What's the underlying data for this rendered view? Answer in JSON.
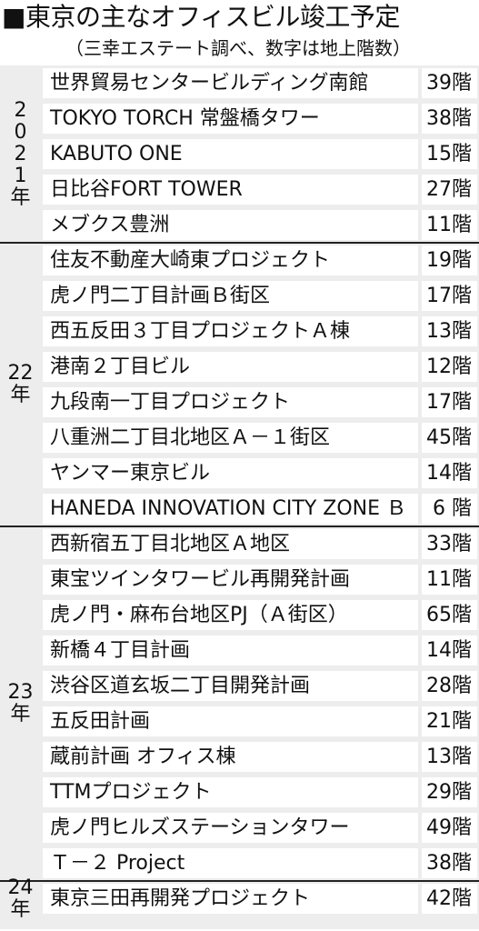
{
  "header": {
    "title": "■東京の主なオフィスビル竣工予定",
    "subtitle": "（三幸エステート調べ、数字は地上階数）"
  },
  "groups": [
    {
      "year": "2\n0\n2\n1\n年",
      "rows": [
        {
          "name": "世界貿易センタービルディング南館",
          "floors": "39階"
        },
        {
          "name": "TOKYO TORCH 常盤橋タワー",
          "floors": "38階"
        },
        {
          "name": "KABUTO ONE",
          "floors": "15階"
        },
        {
          "name": "日比谷FORT TOWER",
          "floors": "27階"
        },
        {
          "name": "メブクス豊洲",
          "floors": "11階"
        }
      ]
    },
    {
      "year": "22\n年",
      "rows": [
        {
          "name": "住友不動産大崎東プロジェクト",
          "floors": "19階"
        },
        {
          "name": "虎ノ門二丁目計画Ｂ街区",
          "floors": "17階"
        },
        {
          "name": "西五反田３丁目プロジェクトＡ棟",
          "floors": "13階"
        },
        {
          "name": "港南２丁目ビル",
          "floors": "12階"
        },
        {
          "name": "九段南一丁目プロジェクト",
          "floors": "17階"
        },
        {
          "name": "八重洲二丁目北地区Ａ－１街区",
          "floors": "45階"
        },
        {
          "name": "ヤンマー東京ビル",
          "floors": "14階"
        },
        {
          "name": "HANEDA INNOVATION CITY ZONE Ｂ",
          "floors": "6 階"
        }
      ]
    },
    {
      "year": "23\n年",
      "rows": [
        {
          "name": "西新宿五丁目北地区Ａ地区",
          "floors": "33階"
        },
        {
          "name": "東宝ツインタワービル再開発計画",
          "floors": "11階"
        },
        {
          "name": "虎ノ門・麻布台地区PJ（Ａ街区）",
          "floors": "65階"
        },
        {
          "name": "新橋４丁目計画",
          "floors": "14階"
        },
        {
          "name": "渋谷区道玄坂二丁目開発計画",
          "floors": "28階"
        },
        {
          "name": "五反田計画",
          "floors": "21階"
        },
        {
          "name": "蔵前計画 オフィス棟",
          "floors": "13階"
        },
        {
          "name": "TTMプロジェクト",
          "floors": "29階"
        },
        {
          "name": "虎ノ門ヒルズステーションタワー",
          "floors": "49階"
        },
        {
          "name": "Ｔ－２ Project",
          "floors": "38階"
        }
      ]
    },
    {
      "year": "24\n年",
      "rows": [
        {
          "name": "東京三田再開発プロジェクト",
          "floors": "42階"
        }
      ]
    }
  ]
}
